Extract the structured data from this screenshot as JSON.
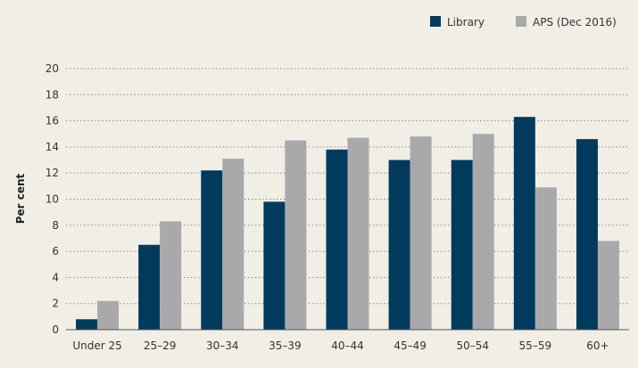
{
  "chart_data": {
    "type": "bar",
    "title": "",
    "xlabel": "",
    "ylabel": "Per cent",
    "ylim": [
      0,
      20
    ],
    "yticks": [
      0,
      2,
      4,
      6,
      8,
      10,
      12,
      14,
      16,
      18,
      20
    ],
    "grid": "horizontal dotted",
    "legend_position": "top-right",
    "categories": [
      "Under 25",
      "25–29",
      "30–34",
      "35–39",
      "40–44",
      "45–49",
      "50–54",
      "55–59",
      "60+"
    ],
    "series": [
      {
        "name": "Library",
        "color": "#003a5d",
        "values": [
          0.8,
          6.5,
          12.2,
          9.8,
          13.8,
          13.0,
          13.0,
          16.3,
          14.6
        ]
      },
      {
        "name": "APS (Dec 2016)",
        "color": "#a9a9ab",
        "values": [
          2.2,
          8.3,
          13.1,
          14.5,
          14.7,
          14.8,
          15.0,
          10.9,
          6.8
        ]
      }
    ]
  }
}
